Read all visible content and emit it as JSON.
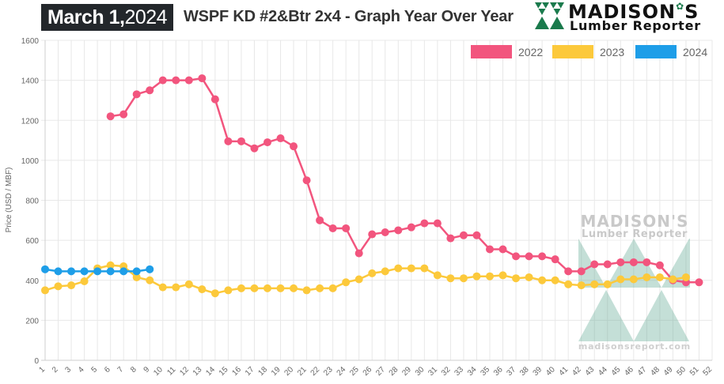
{
  "header": {
    "date_bold": "March 1,",
    "date_year": "2024",
    "title": "WSPF KD #2&Btr 2x4 - Graph Year Over Year",
    "logo_name": "MADISON",
    "logo_name_end": "S",
    "logo_sub": "Lumber Reporter"
  },
  "watermark": {
    "name": "MADISON'S",
    "sub": "Lumber Reporter",
    "url": "madisonsreport.com"
  },
  "chart_data": {
    "type": "line",
    "title": "WSPF KD #2&Btr 2x4 - Graph Year Over Year",
    "xlabel": "",
    "ylabel": "Price (USD / MBF)",
    "ylim": [
      0,
      1600
    ],
    "yticks": [
      0,
      200,
      400,
      600,
      800,
      1000,
      1200,
      1400,
      1600
    ],
    "x": [
      1,
      2,
      3,
      4,
      5,
      6,
      7,
      8,
      9,
      10,
      11,
      12,
      13,
      14,
      15,
      16,
      17,
      18,
      19,
      20,
      21,
      22,
      23,
      24,
      25,
      26,
      27,
      28,
      29,
      30,
      31,
      32,
      33,
      34,
      35,
      36,
      37,
      38,
      39,
      40,
      41,
      42,
      43,
      44,
      45,
      46,
      47,
      48,
      49,
      50,
      51,
      52
    ],
    "grid": true,
    "legend_position": "top-right",
    "series": [
      {
        "name": "2022",
        "color": "#f2557e",
        "start_week": 6,
        "values": [
          1220,
          1230,
          1330,
          1350,
          1400,
          1400,
          1400,
          1410,
          1305,
          1095,
          1095,
          1060,
          1090,
          1110,
          1070,
          900,
          700,
          660,
          660,
          535,
          630,
          640,
          650,
          665,
          685,
          685,
          610,
          625,
          625,
          555,
          555,
          520,
          520,
          520,
          505,
          445,
          445,
          480,
          480,
          490,
          490,
          490,
          475,
          400,
          390,
          390
        ]
      },
      {
        "name": "2023",
        "color": "#fcc93b",
        "start_week": 1,
        "values": [
          350,
          370,
          375,
          395,
          460,
          475,
          470,
          415,
          400,
          365,
          365,
          380,
          355,
          335,
          350,
          360,
          360,
          360,
          360,
          360,
          350,
          360,
          360,
          390,
          405,
          435,
          445,
          460,
          460,
          460,
          425,
          410,
          410,
          420,
          420,
          425,
          410,
          415,
          400,
          400,
          380,
          375,
          380,
          380,
          405,
          405,
          415,
          415,
          405,
          415
        ]
      },
      {
        "name": "2024",
        "color": "#1e9ee8",
        "start_week": 1,
        "values": [
          455,
          445,
          445,
          445,
          445,
          445,
          445,
          445,
          455
        ]
      }
    ]
  }
}
